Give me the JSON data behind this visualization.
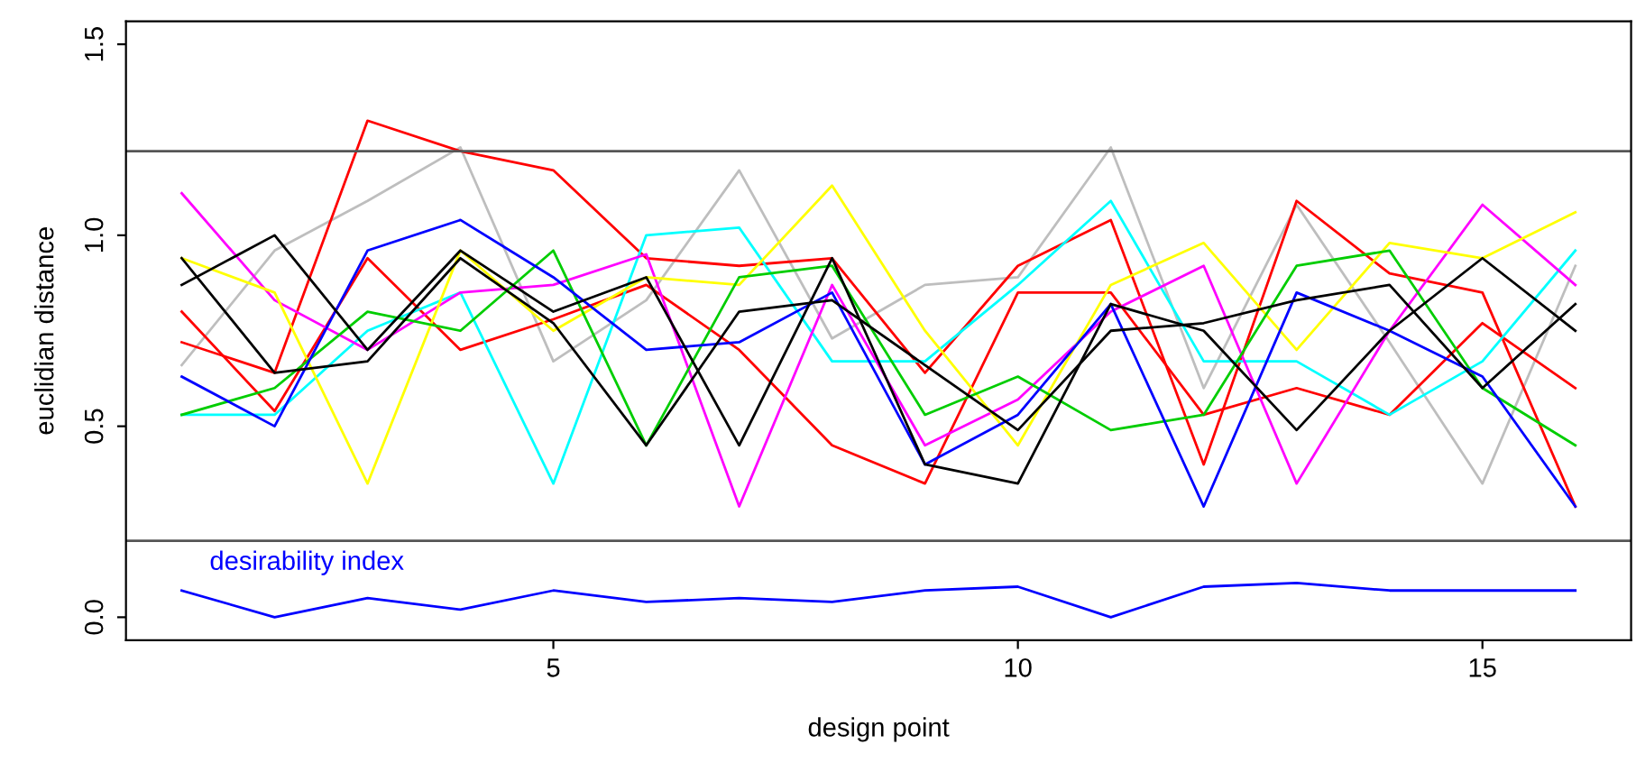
{
  "chart_data": {
    "type": "line",
    "xlabel": "design point",
    "ylabel": "euclidian distance",
    "x": [
      1,
      2,
      3,
      4,
      5,
      6,
      7,
      8,
      9,
      10,
      11,
      12,
      13,
      14,
      15,
      16
    ],
    "xlim": [
      0.4,
      16.6
    ],
    "xticks": [
      5,
      10,
      15
    ],
    "ylim": [
      -0.06,
      1.56
    ],
    "yticks": [
      {
        "value": 0,
        "label": "0.0"
      },
      {
        "value": 0.5,
        "label": "0.5"
      },
      {
        "value": 1,
        "label": "1.0"
      },
      {
        "value": 1.5,
        "label": "1.5"
      }
    ],
    "grid": false,
    "legend": false,
    "marker": "none",
    "line_style": "solid",
    "ref_lines": [
      {
        "axis": "y",
        "value": 1.22,
        "color": "#555555"
      },
      {
        "axis": "y",
        "value": 0.2,
        "color": "#555555"
      }
    ],
    "series": [
      {
        "color": "#bebebe",
        "values": [
          0.66,
          0.96,
          1.09,
          1.23,
          0.67,
          0.83,
          1.17,
          0.73,
          0.87,
          0.89,
          1.23,
          0.6,
          1.08,
          0.72,
          0.35,
          0.92
        ]
      },
      {
        "color": "#ff0000",
        "values": [
          0.72,
          0.64,
          1.3,
          1.22,
          1.17,
          0.94,
          0.92,
          0.94,
          0.64,
          0.92,
          1.04,
          0.4,
          1.09,
          0.9,
          0.85,
          0.29
        ]
      },
      {
        "color": "#ff0000",
        "values": [
          0.8,
          0.54,
          0.94,
          0.7,
          0.78,
          0.87,
          0.7,
          0.45,
          0.35,
          0.85,
          0.85,
          0.53,
          0.6,
          0.53,
          0.77,
          0.6
        ]
      },
      {
        "color": "#00ffff",
        "values": [
          0.53,
          0.53,
          0.75,
          0.85,
          0.35,
          1.0,
          1.02,
          0.67,
          0.67,
          0.87,
          1.09,
          0.67,
          0.67,
          0.53,
          0.67,
          0.96
        ]
      },
      {
        "color": "#ff00ff",
        "values": [
          1.11,
          0.83,
          0.7,
          0.85,
          0.87,
          0.95,
          0.29,
          0.87,
          0.45,
          0.57,
          0.8,
          0.92,
          0.35,
          0.75,
          1.08,
          0.87
        ]
      },
      {
        "color": "#ffff00",
        "values": [
          0.94,
          0.85,
          0.35,
          0.96,
          0.75,
          0.89,
          0.87,
          1.13,
          0.75,
          0.45,
          0.87,
          0.98,
          0.7,
          0.98,
          0.94,
          1.06
        ]
      },
      {
        "color": "#00cd00",
        "values": [
          0.53,
          0.6,
          0.8,
          0.75,
          0.96,
          0.45,
          0.89,
          0.92,
          0.53,
          0.63,
          0.49,
          0.53,
          0.92,
          0.96,
          0.6,
          0.45
        ]
      },
      {
        "color": "#0000ff",
        "values": [
          0.63,
          0.5,
          0.96,
          1.04,
          0.89,
          0.7,
          0.72,
          0.85,
          0.4,
          0.53,
          0.82,
          0.29,
          0.85,
          0.75,
          0.63,
          0.29
        ]
      },
      {
        "color": "#000000",
        "values": [
          0.87,
          1.0,
          0.7,
          0.96,
          0.8,
          0.89,
          0.45,
          0.94,
          0.4,
          0.35,
          0.82,
          0.75,
          0.49,
          0.75,
          0.94,
          0.75
        ]
      },
      {
        "color": "#000000",
        "values": [
          0.94,
          0.64,
          0.67,
          0.94,
          0.77,
          0.45,
          0.8,
          0.83,
          0.66,
          0.49,
          0.75,
          0.77,
          0.83,
          0.87,
          0.6,
          0.82
        ]
      },
      {
        "name": "desirability index",
        "color": "#0000ff",
        "values": [
          0.07,
          0.0,
          0.05,
          0.02,
          0.07,
          0.04,
          0.05,
          0.04,
          0.07,
          0.08,
          0.0,
          0.08,
          0.09,
          0.07,
          0.07,
          0.07
        ]
      }
    ]
  }
}
